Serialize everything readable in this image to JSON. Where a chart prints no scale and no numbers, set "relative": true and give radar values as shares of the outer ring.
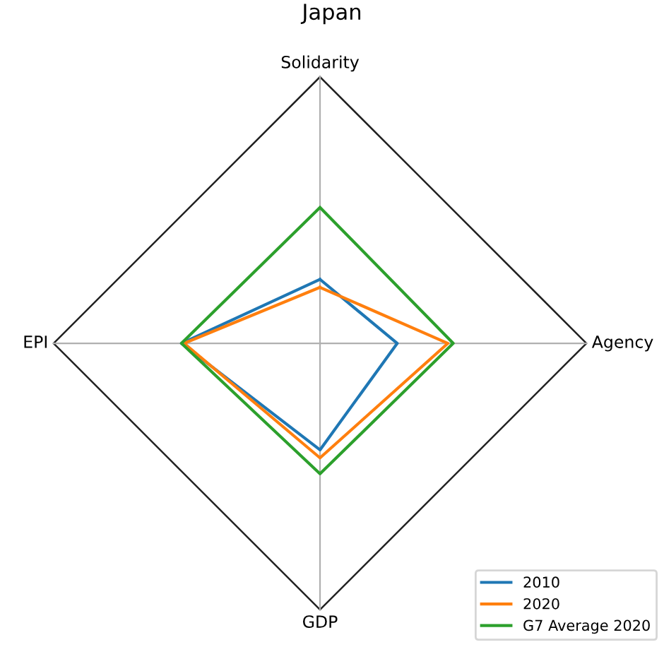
{
  "chart_data": {
    "type": "radar",
    "title": "Japan",
    "categories": [
      "Solidarity",
      "Agency",
      "GDP",
      "EPI"
    ],
    "relative": true,
    "grid": true,
    "legend": "bottom right",
    "series": [
      {
        "name": "2010",
        "color": "#1f77b4",
        "values": [
          0.24,
          0.29,
          0.4,
          0.52
        ]
      },
      {
        "name": "2020",
        "color": "#ff7f0e",
        "values": [
          0.21,
          0.48,
          0.43,
          0.51
        ]
      },
      {
        "name": "G7 Average 2020",
        "color": "#2ca02c",
        "values": [
          0.51,
          0.5,
          0.49,
          0.52
        ]
      }
    ]
  }
}
